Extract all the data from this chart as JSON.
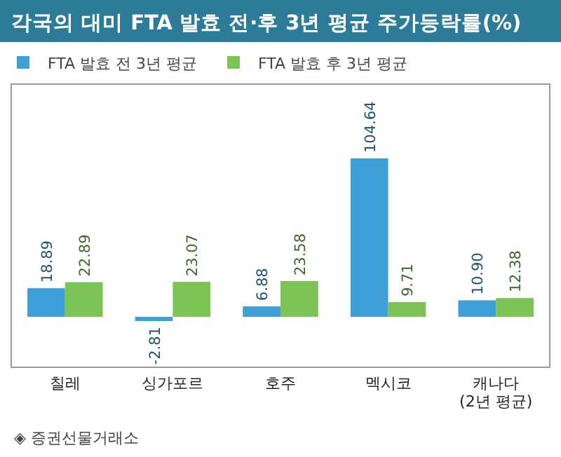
{
  "chart_data": {
    "type": "bar",
    "title": "각국의 대미 FTA 발효 전·후 3년 평균 주가등락률(%)",
    "categories": [
      "칠레",
      "싱가포르",
      "호주",
      "멕시코",
      "캐나다\n(2년 평균)"
    ],
    "series": [
      {
        "name": "FTA 발효 전 3년 평균",
        "color": "#3f9fd7",
        "values": [
          18.89,
          -2.81,
          6.88,
          104.64,
          10.9
        ],
        "value_labels": [
          "18.89",
          "-2.81",
          "6.88",
          "104.64",
          "10.90"
        ]
      },
      {
        "name": "FTA 발효 후 3년 평균",
        "color": "#7cc254",
        "values": [
          22.89,
          23.07,
          23.58,
          9.71,
          12.38
        ],
        "value_labels": [
          "22.89",
          "23.07",
          "23.58",
          "9.71",
          "12.38"
        ]
      }
    ],
    "data_labels": true,
    "legend": "top left",
    "annotations": [
      "◈ 증권선물거래소"
    ]
  }
}
